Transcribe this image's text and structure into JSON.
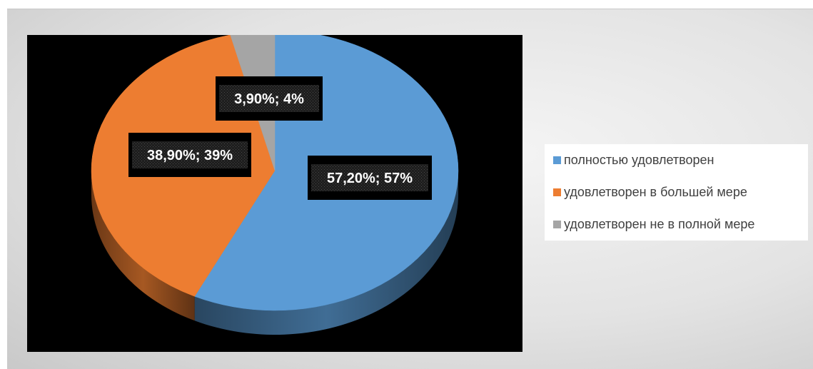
{
  "chart_data": {
    "type": "pie",
    "title": "",
    "slices": [
      {
        "name": "полностью удовлетворен",
        "value": 57.2,
        "label": "57,20%; 57%",
        "color": "#5B9BD5"
      },
      {
        "name": "удовлетворен в большей мере",
        "value": 38.9,
        "label": "38,90%; 39%",
        "color": "#ED7D31"
      },
      {
        "name": "удовлетворен не в полной мере",
        "value": 3.9,
        "label": "3,90%; 4%",
        "color": "#A5A5A5"
      }
    ],
    "legend_position": "right",
    "background": "#000000",
    "style": "3d"
  },
  "legend": {
    "items": [
      {
        "label": "полностью удовлетворен",
        "color": "#5B9BD5"
      },
      {
        "label": "удовлетворен в большей мере",
        "color": "#ED7D31"
      },
      {
        "label": "удовлетворен не в полной мере",
        "color": "#A5A5A5"
      }
    ]
  }
}
